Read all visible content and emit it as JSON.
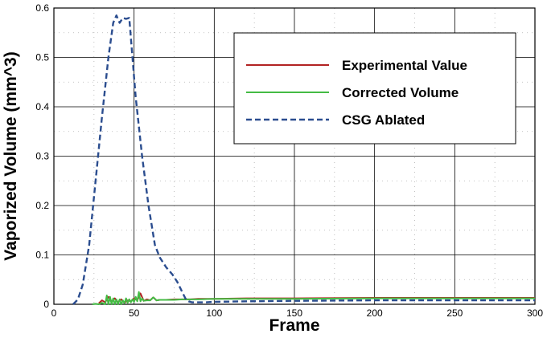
{
  "chart_data": {
    "type": "line",
    "xlabel": "Frame",
    "ylabel": "Vaporized Volume (mm^3)",
    "xlim": [
      0,
      300
    ],
    "ylim": [
      0,
      0.6
    ],
    "x_ticks": [
      0,
      50,
      100,
      150,
      200,
      250,
      300
    ],
    "y_ticks": [
      0,
      0.1,
      0.2,
      0.3,
      0.4,
      0.5,
      0.6
    ],
    "x_tick_labels": [
      "0",
      "50",
      "100",
      "150",
      "200",
      "250",
      "300"
    ],
    "y_tick_labels": [
      "0",
      "0.1",
      "0.2",
      "0.3",
      "0.4",
      "0.5",
      "0.6"
    ],
    "grid": true,
    "legend_position": "top-right",
    "series": [
      {
        "name": "Experimental Value",
        "color": "#b22222",
        "style": "solid",
        "x": [
          28,
          30,
          32,
          34,
          36,
          38,
          40,
          42,
          44,
          46,
          48,
          50,
          52,
          54,
          56,
          58,
          60,
          62,
          64,
          66,
          68,
          70,
          75,
          80,
          85,
          90,
          100,
          120,
          150,
          200,
          250,
          300
        ],
        "y": [
          0.002,
          0.008,
          0.004,
          0.015,
          0.006,
          0.012,
          0.004,
          0.01,
          0.003,
          0.008,
          0.006,
          0.012,
          0.008,
          0.022,
          0.007,
          0.01,
          0.008,
          0.014,
          0.008,
          0.009,
          0.009,
          0.009,
          0.01,
          0.01,
          0.01,
          0.011,
          0.011,
          0.012,
          0.012,
          0.013,
          0.013,
          0.013
        ]
      },
      {
        "name": "Corrected Volume",
        "color": "#44bb44",
        "style": "solid",
        "x": [
          24,
          26,
          28,
          30,
          32,
          33,
          34,
          35,
          36,
          37,
          38,
          39,
          40,
          41,
          42,
          43,
          44,
          45,
          46,
          47,
          48,
          49,
          50,
          51,
          52,
          53,
          54,
          55,
          56,
          58,
          60,
          62,
          64,
          66,
          68,
          70,
          75,
          80,
          85,
          90,
          100,
          120,
          150,
          200,
          250,
          300
        ],
        "y": [
          0.0,
          0.001,
          0.0,
          0.003,
          0.0,
          0.018,
          0.0,
          0.015,
          0.0,
          0.012,
          0.0,
          0.01,
          0.0,
          0.01,
          0.0,
          0.008,
          0.002,
          0.012,
          0.003,
          0.01,
          0.004,
          0.01,
          0.005,
          0.015,
          0.006,
          0.025,
          0.006,
          0.012,
          0.007,
          0.008,
          0.008,
          0.014,
          0.008,
          0.009,
          0.009,
          0.009,
          0.009,
          0.01,
          0.01,
          0.01,
          0.011,
          0.011,
          0.011,
          0.012,
          0.012,
          0.012
        ]
      },
      {
        "name": "CSG Ablated",
        "color": "#2b4d8f",
        "style": "dashed",
        "x": [
          12,
          15,
          18,
          22,
          26,
          30,
          34,
          37,
          39,
          41,
          43,
          45,
          47,
          49,
          51,
          53,
          55,
          57,
          59,
          61,
          63,
          66,
          70,
          74,
          77,
          80,
          82,
          84,
          86,
          90,
          95,
          100,
          120,
          150,
          200,
          250,
          300
        ],
        "y": [
          0.0,
          0.01,
          0.04,
          0.12,
          0.25,
          0.38,
          0.5,
          0.57,
          0.585,
          0.57,
          0.58,
          0.578,
          0.58,
          0.5,
          0.42,
          0.36,
          0.3,
          0.25,
          0.2,
          0.16,
          0.12,
          0.095,
          0.075,
          0.06,
          0.045,
          0.025,
          0.012,
          0.006,
          0.004,
          0.004,
          0.004,
          0.005,
          0.006,
          0.007,
          0.008,
          0.008,
          0.008
        ]
      }
    ]
  }
}
